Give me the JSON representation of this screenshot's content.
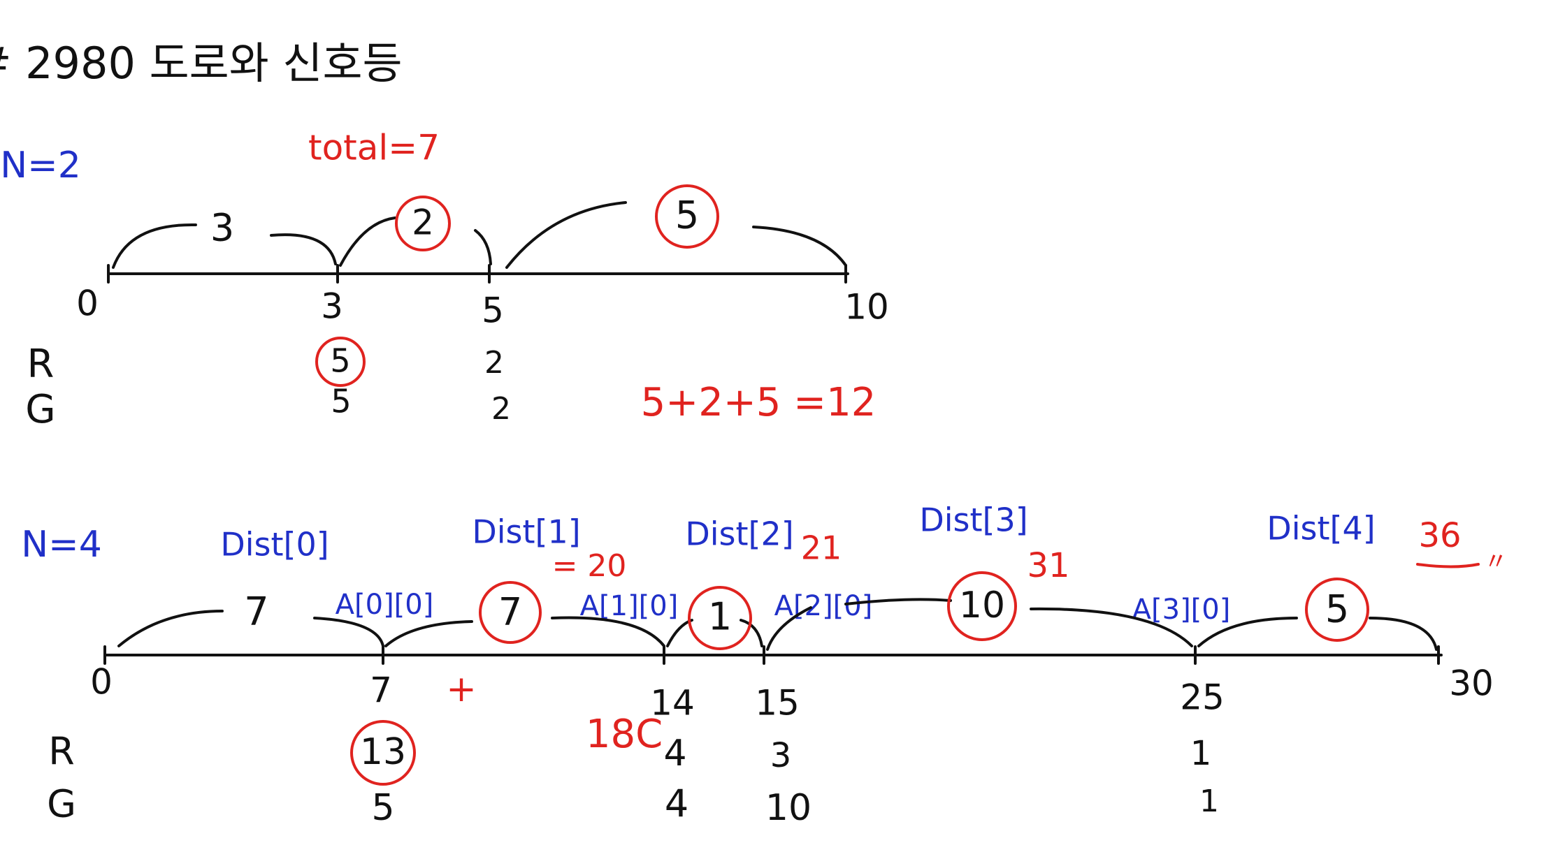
{
  "title": "# 2980 도로와 신호등",
  "colors": {
    "ink": "#111111",
    "red": "#e0231f",
    "blue": "#2030c8"
  },
  "diagram1": {
    "n_label": "N=2",
    "total_label": "total=7",
    "sum_label": "5+2+5 =12",
    "row_labels": {
      "r": "R",
      "g": "G"
    },
    "positions": [
      "0",
      "3",
      "5",
      "10"
    ],
    "segments": [
      "3",
      "2",
      "5"
    ],
    "r_values": [
      "5",
      "2"
    ],
    "g_values": [
      "5",
      "2"
    ]
  },
  "diagram2": {
    "n_label": "N=4",
    "dist_labels": [
      "Dist[0]",
      "Dist[1]",
      "Dist[2]",
      "Dist[3]",
      "Dist[4]"
    ],
    "a_labels": [
      "A[0][0]",
      "A[1][0]",
      "A[2][0]",
      "A[3][0]"
    ],
    "segments": [
      "7",
      "7",
      "1",
      "10",
      "5"
    ],
    "positions": [
      "0",
      "7",
      "14",
      "15",
      "25",
      "30"
    ],
    "row_labels": {
      "r": "R",
      "g": "G"
    },
    "r_values": [
      "13",
      "4",
      "3",
      "1"
    ],
    "g_values": [
      "5",
      "4",
      "10",
      "1"
    ],
    "red_notes": {
      "n20": "= 20",
      "n21": "21",
      "n31": "31",
      "n36": "36",
      "n36_mark": "〃",
      "n18": "18C",
      "tick_mark": "+"
    }
  }
}
